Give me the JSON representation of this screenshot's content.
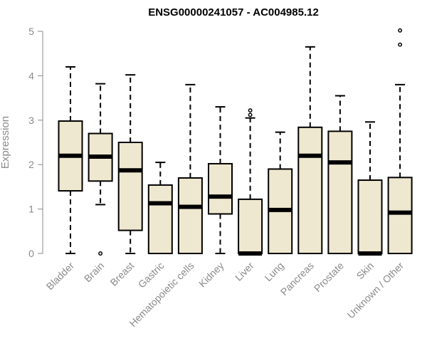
{
  "chart_data": {
    "type": "box",
    "title": "ENSG00000241057 - AC004985.12",
    "xlabel": "",
    "ylabel": "Expression",
    "ylim": [
      0,
      5.1
    ],
    "yticks": [
      0,
      1,
      2,
      3,
      4,
      5
    ],
    "colors": {
      "box_fill": "#efe8d0",
      "stroke": "#000000",
      "axis": "#8a8a8a"
    },
    "categories": [
      "Bladder",
      "Brain",
      "Breast",
      "Gastric",
      "Hematopoietic cells",
      "Kidney",
      "Liver",
      "Lung",
      "Pancreas",
      "Prostate",
      "Skin",
      "Unknown / Other"
    ],
    "boxes": [
      {
        "min": 0.0,
        "q1": 1.41,
        "median": 2.2,
        "q3": 2.98,
        "max": 4.2,
        "outliers": []
      },
      {
        "min": 1.1,
        "q1": 1.63,
        "median": 2.18,
        "q3": 2.7,
        "max": 3.82,
        "outliers": [
          0.0
        ]
      },
      {
        "min": 0.0,
        "q1": 0.52,
        "median": 1.87,
        "q3": 2.5,
        "max": 4.02,
        "outliers": []
      },
      {
        "min": 0.0,
        "q1": 0.0,
        "median": 1.13,
        "q3": 1.54,
        "max": 2.05,
        "outliers": []
      },
      {
        "min": 0.0,
        "q1": 0.0,
        "median": 1.05,
        "q3": 1.7,
        "max": 3.8,
        "outliers": []
      },
      {
        "min": 0.0,
        "q1": 0.89,
        "median": 1.28,
        "q3": 2.02,
        "max": 3.3,
        "outliers": []
      },
      {
        "min": 0.0,
        "q1": 0.0,
        "median": 0.0,
        "q3": 1.22,
        "max": 3.05,
        "outliers": [
          3.12,
          3.22
        ]
      },
      {
        "min": 0.0,
        "q1": 0.0,
        "median": 0.98,
        "q3": 1.9,
        "max": 2.73,
        "outliers": []
      },
      {
        "min": 0.0,
        "q1": 0.0,
        "median": 2.2,
        "q3": 2.84,
        "max": 4.65,
        "outliers": []
      },
      {
        "min": 0.0,
        "q1": 0.0,
        "median": 2.05,
        "q3": 2.75,
        "max": 3.55,
        "outliers": []
      },
      {
        "min": 0.0,
        "q1": 0.0,
        "median": 0.0,
        "q3": 1.65,
        "max": 2.96,
        "outliers": []
      },
      {
        "min": 0.0,
        "q1": 0.0,
        "median": 0.92,
        "q3": 1.71,
        "max": 3.8,
        "outliers": [
          4.7,
          5.02
        ]
      }
    ],
    "grid": false,
    "legend": "none"
  }
}
